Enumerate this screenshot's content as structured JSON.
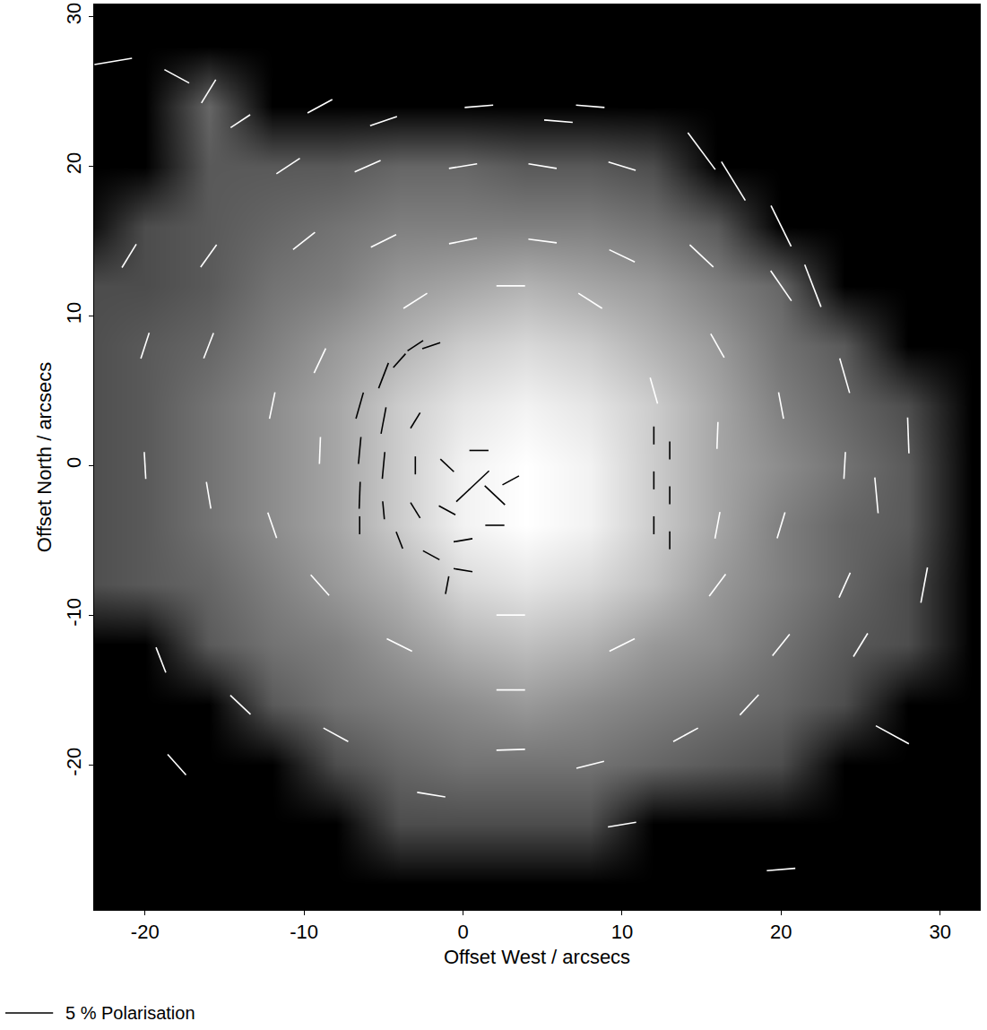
{
  "chart_data": {
    "type": "vector",
    "xlabel": "Offset West / arcsecs",
    "ylabel": "Offset North / arcsecs",
    "xlim": [
      -23.2,
      32.5
    ],
    "ylim": [
      -29.7,
      30.8
    ],
    "xticks": [
      -20,
      -10,
      0,
      10,
      20,
      30
    ],
    "yticks": [
      -20,
      -10,
      0,
      10,
      20,
      30
    ],
    "grid": false,
    "image": {
      "x": [
        -24,
        -20,
        -16,
        -12,
        -8,
        -4,
        0,
        4,
        8,
        12,
        16,
        20,
        24,
        28,
        32
      ],
      "y": [
        -28,
        -24,
        -20,
        -16,
        -12,
        -8,
        -4,
        0,
        4,
        8,
        12,
        16,
        20,
        24,
        28
      ],
      "zlim": [
        0,
        1
      ],
      "z": [
        [
          0,
          0,
          0,
          0,
          0,
          0,
          0,
          0,
          0,
          0,
          0,
          0,
          0,
          0,
          0
        ],
        [
          0,
          0,
          0,
          0,
          0,
          0.3,
          0.3,
          0.3,
          0.3,
          0,
          0,
          0,
          0,
          0,
          0
        ],
        [
          0,
          0,
          0,
          0,
          0.3,
          0.4,
          0.45,
          0.45,
          0.45,
          0.4,
          0.35,
          0.3,
          0,
          0,
          0
        ],
        [
          0,
          0,
          0,
          0.35,
          0.45,
          0.5,
          0.55,
          0.6,
          0.55,
          0.5,
          0.45,
          0.4,
          0.3,
          0,
          0
        ],
        [
          0,
          0,
          0.35,
          0.45,
          0.5,
          0.6,
          0.7,
          0.75,
          0.7,
          0.6,
          0.55,
          0.45,
          0.35,
          0.3,
          0
        ],
        [
          0.3,
          0.35,
          0.4,
          0.5,
          0.6,
          0.7,
          0.85,
          0.9,
          0.85,
          0.75,
          0.6,
          0.5,
          0.4,
          0.3,
          0
        ],
        [
          0.3,
          0.35,
          0.45,
          0.55,
          0.65,
          0.8,
          0.95,
          1,
          0.95,
          0.8,
          0.65,
          0.5,
          0.4,
          0.35,
          0
        ],
        [
          0.3,
          0.35,
          0.45,
          0.55,
          0.65,
          0.8,
          0.95,
          1,
          0.95,
          0.8,
          0.65,
          0.55,
          0.45,
          0.35,
          0
        ],
        [
          0.3,
          0.35,
          0.45,
          0.55,
          0.65,
          0.8,
          0.9,
          0.95,
          0.9,
          0.8,
          0.65,
          0.5,
          0.4,
          0.3,
          0
        ],
        [
          0.3,
          0.35,
          0.4,
          0.5,
          0.6,
          0.7,
          0.8,
          0.85,
          0.8,
          0.7,
          0.6,
          0.45,
          0.35,
          0,
          0
        ],
        [
          0.3,
          0.3,
          0.35,
          0.45,
          0.5,
          0.6,
          0.65,
          0.7,
          0.65,
          0.6,
          0.5,
          0.4,
          0,
          0,
          0
        ],
        [
          0,
          0.3,
          0.35,
          0.4,
          0.45,
          0.5,
          0.5,
          0.5,
          0.5,
          0.45,
          0.35,
          0,
          0,
          0,
          0
        ],
        [
          0,
          0,
          0.35,
          0.35,
          0.35,
          0.4,
          0.4,
          0.35,
          0.35,
          0.3,
          0,
          0,
          0,
          0,
          0
        ],
        [
          0,
          0,
          0.4,
          0,
          0,
          0,
          0,
          0,
          0,
          0,
          0,
          0,
          0,
          0,
          0
        ],
        [
          0,
          0,
          0,
          0,
          0,
          0,
          0,
          0,
          0,
          0,
          0,
          0,
          0,
          0,
          0
        ]
      ]
    },
    "series": [
      {
        "color": "#ffffff",
        "x": [
          -22,
          -18,
          -16,
          -14,
          -9,
          -5,
          1,
          6,
          -11,
          -6,
          0,
          5,
          10,
          -10,
          -5,
          0,
          5,
          10,
          -3,
          3,
          8,
          15,
          17,
          20,
          22,
          15,
          24,
          26,
          28,
          29,
          27,
          20,
          12,
          16,
          20,
          16,
          20,
          24,
          16,
          20,
          24,
          16,
          20,
          18,
          14,
          10,
          3,
          3,
          3,
          -4,
          -8,
          -14,
          -18,
          -19,
          -9,
          -12,
          -16,
          -20,
          -9,
          -12,
          -16,
          -20,
          -9,
          -16,
          -21,
          8,
          -2,
          10,
          8,
          25
        ],
        "y": [
          27,
          26,
          25,
          23,
          24,
          23,
          24,
          23,
          20,
          20,
          20,
          20,
          20,
          15,
          15,
          15,
          15,
          14,
          11,
          12,
          11,
          14,
          19,
          16,
          12,
          21,
          6,
          -2,
          2,
          -8,
          -18,
          -27,
          5,
          8,
          12,
          2,
          4,
          0,
          -4,
          -4,
          -8,
          -8,
          -12,
          -16,
          -18,
          -12,
          -10,
          -15,
          -19,
          -12,
          -18,
          -16,
          -20,
          -13,
          -8,
          -4,
          -2,
          0,
          1,
          4,
          8,
          8,
          7,
          14,
          14,
          -20,
          -22,
          -24,
          24,
          -12
        ],
        "p": [
          4,
          3,
          3,
          2.5,
          3,
          3,
          3,
          3,
          3,
          3,
          3,
          3,
          3,
          3,
          3,
          3,
          3,
          3,
          3,
          3,
          3,
          3.5,
          5,
          5,
          5,
          5,
          4,
          4,
          4,
          4,
          4,
          3,
          3,
          3,
          4,
          3,
          3,
          3,
          3,
          3,
          3,
          3,
          3,
          3,
          3,
          3,
          3,
          3,
          3,
          3,
          3,
          3,
          3,
          3,
          3,
          3,
          3,
          3,
          3,
          3,
          3,
          3,
          3,
          3,
          3,
          3,
          3,
          3,
          3,
          3
        ],
        "angle": [
          100,
          60,
          150,
          125,
          120,
          110,
          95,
          85,
          125,
          115,
          100,
          80,
          72,
          130,
          118,
          102,
          82,
          63,
          124,
          90,
          56,
          45,
          30,
          25,
          20,
          35,
          15,
          5,
          2,
          170,
          60,
          95,
          15,
          28,
          33,
          178,
          10,
          177,
          170,
          164,
          157,
          145,
          143,
          139,
          120,
          118,
          90,
          90,
          92,
          62,
          60,
          45,
          40,
          20,
          40,
          18,
          9,
          3,
          178,
          169,
          160,
          163,
          156,
          146,
          150,
          105,
          80,
          100,
          85,
          150
        ]
      },
      {
        "color": "#000000",
        "x": [
          -6.5,
          -6.5,
          -6.5,
          -6.5,
          -5,
          -5,
          -5,
          -5,
          -4,
          -4,
          -3,
          -2,
          -2,
          0,
          -3,
          -3,
          -3,
          -1,
          0,
          1,
          2,
          3,
          1,
          2,
          0,
          -1,
          -1,
          12,
          12,
          12,
          13,
          13,
          13
        ],
        "y": [
          4,
          1,
          -2,
          -4,
          6,
          3,
          0,
          -3,
          7,
          -5,
          8,
          8,
          -6,
          -7,
          3,
          0,
          -3,
          0,
          -2,
          -1,
          -2,
          -1,
          1,
          -4,
          -5,
          -3,
          -8,
          2,
          -1,
          -4,
          1,
          -2,
          -5
        ],
        "p": [
          3,
          3,
          3,
          2,
          3,
          3,
          3,
          2,
          2,
          2,
          2,
          2,
          2,
          2,
          2,
          2,
          2,
          2,
          2,
          3,
          3,
          2,
          2,
          2,
          2,
          2,
          2,
          2,
          2,
          2,
          2,
          2,
          2
        ],
        "angle": [
          165,
          175,
          178,
          0,
          160,
          170,
          175,
          5,
          140,
          20,
          125,
          110,
          60,
          80,
          150,
          0,
          30,
          45,
          135,
          135,
          45,
          120,
          90,
          90,
          100,
          60,
          170,
          0,
          0,
          0,
          0,
          0,
          0
        ]
      }
    ],
    "scale_value": 5,
    "scale_label": "5 % Polarisation"
  }
}
